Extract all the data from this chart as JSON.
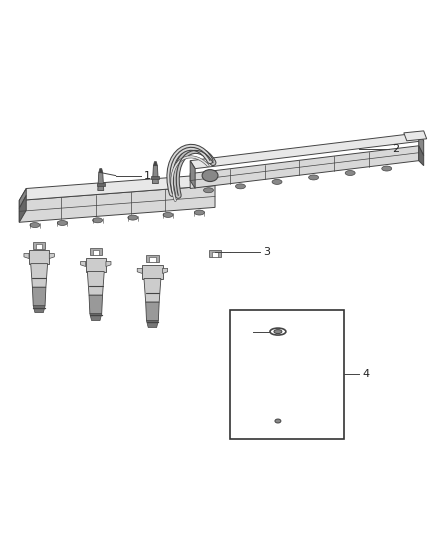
{
  "bg_color": "#ffffff",
  "fig_width": 4.38,
  "fig_height": 5.33,
  "dpi": 100,
  "line_color": "#444444",
  "rail_face_color": "#d8d8d8",
  "rail_top_color": "#e8e8e8",
  "rail_dark_color": "#888888",
  "rail_darker": "#666666",
  "clip_color": "#aaaaaa",
  "injector_body_color": "#cccccc",
  "injector_dark": "#999999",
  "injector_darker": "#777777",
  "label_fontsize": 8,
  "label_color": "#222222"
}
